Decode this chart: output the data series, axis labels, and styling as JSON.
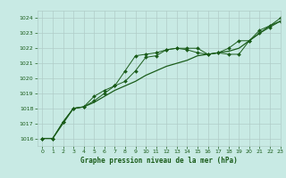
{
  "title": "Graphe pression niveau de la mer (hPa)",
  "background_color": "#c8eae4",
  "plot_bg_color": "#c8eae4",
  "grid_color": "#b0ccc8",
  "line_color": "#1a5c1a",
  "xlim": [
    -0.5,
    23
  ],
  "ylim": [
    1015.5,
    1024.5
  ],
  "yticks": [
    1016,
    1017,
    1018,
    1019,
    1020,
    1021,
    1022,
    1023,
    1024
  ],
  "xticks": [
    0,
    1,
    2,
    3,
    4,
    5,
    6,
    7,
    8,
    9,
    10,
    11,
    12,
    13,
    14,
    15,
    16,
    17,
    18,
    19,
    20,
    21,
    22,
    23
  ],
  "series1": [
    1016.0,
    1016.0,
    1017.1,
    1018.0,
    1018.1,
    1018.8,
    1019.2,
    1019.5,
    1019.8,
    1020.5,
    1021.4,
    1021.5,
    1021.9,
    1022.0,
    1022.0,
    1022.0,
    1021.6,
    1021.7,
    1021.6,
    1021.6,
    1022.5,
    1023.0,
    1023.4,
    1023.8
  ],
  "series2": [
    1016.0,
    1016.0,
    1017.1,
    1018.0,
    1018.1,
    1018.5,
    1019.0,
    1019.5,
    1020.5,
    1021.5,
    1021.6,
    1021.7,
    1021.9,
    1022.0,
    1021.9,
    1021.7,
    1021.6,
    1021.7,
    1022.0,
    1022.5,
    1022.5,
    1023.2,
    1023.5,
    1024.0
  ],
  "series3": [
    1016.0,
    1016.0,
    1017.0,
    1018.0,
    1018.1,
    1018.4,
    1018.8,
    1019.2,
    1019.5,
    1019.8,
    1020.2,
    1020.5,
    1020.8,
    1021.0,
    1021.2,
    1021.5,
    1021.6,
    1021.7,
    1021.8,
    1022.0,
    1022.5,
    1023.0,
    1023.5,
    1023.8
  ]
}
